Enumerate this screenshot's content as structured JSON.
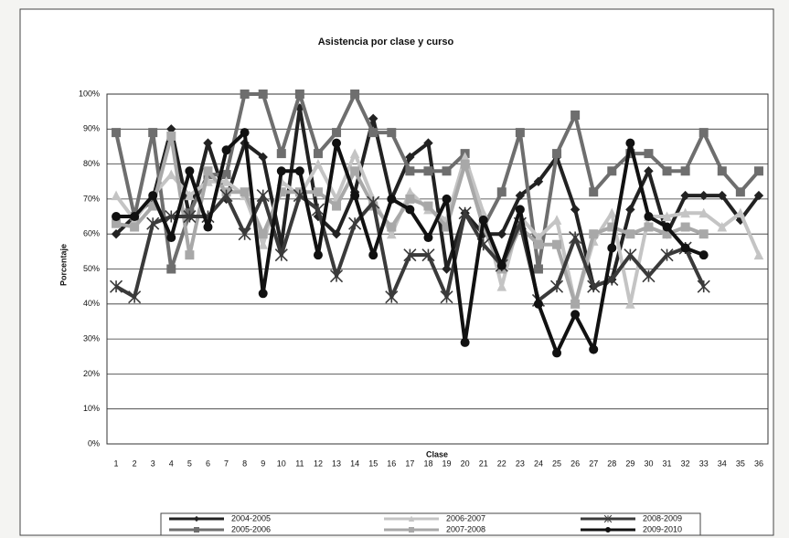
{
  "chart_data": {
    "type": "line",
    "title": "Asistencia por clase y curso",
    "x_label": "Clase",
    "y_label": "Porcentaje",
    "categories": [
      "1",
      "2",
      "3",
      "4",
      "5",
      "6",
      "7",
      "8",
      "9",
      "10",
      "11",
      "12",
      "13",
      "14",
      "15",
      "16",
      "17",
      "18",
      "19",
      "20",
      "21",
      "22",
      "23",
      "24",
      "25",
      "26",
      "27",
      "28",
      "29",
      "30",
      "31",
      "32",
      "33",
      "34",
      "35",
      "36"
    ],
    "ylim": [
      0,
      100
    ],
    "yticks": [
      {
        "value": 0,
        "label": "0%"
      },
      {
        "value": 10,
        "label": "10%"
      },
      {
        "value": 20,
        "label": "20%"
      },
      {
        "value": 30,
        "label": "30%"
      },
      {
        "value": 40,
        "label": "40%"
      },
      {
        "value": 50,
        "label": "50%"
      },
      {
        "value": 60,
        "label": "60%"
      },
      {
        "value": 70,
        "label": "70%"
      },
      {
        "value": 80,
        "label": "80%"
      },
      {
        "value": 90,
        "label": "90%"
      },
      {
        "value": 100,
        "label": "100%"
      }
    ],
    "grid": true,
    "legend": "bottom",
    "series": [
      {
        "name": "2004-2005",
        "color": "#222222",
        "marker": "diamond",
        "values": [
          60,
          65,
          70,
          90,
          65,
          86,
          70,
          86,
          82,
          57,
          96,
          65,
          60,
          72,
          93,
          70,
          82,
          86,
          50,
          66,
          60,
          60,
          71,
          75,
          82,
          67,
          45,
          47,
          67,
          78,
          60,
          71,
          71,
          71,
          64,
          71
        ]
      },
      {
        "name": "2005-2006",
        "color": "#6e6e6e",
        "marker": "square",
        "values": [
          89,
          65,
          89,
          50,
          66,
          77,
          77,
          100,
          100,
          83,
          100,
          83,
          89,
          100,
          89,
          89,
          78,
          78,
          78,
          83,
          62,
          72,
          89,
          50,
          83,
          94,
          72,
          78,
          83,
          83,
          78,
          78,
          89,
          78,
          72,
          78
        ]
      },
      {
        "name": "2006-2007",
        "color": "#c4c4c4",
        "marker": "triangle",
        "values": [
          71,
          64,
          71,
          77,
          71,
          75,
          75,
          71,
          57,
          75,
          71,
          80,
          70,
          83,
          70,
          60,
          72,
          67,
          64,
          82,
          66,
          45,
          65,
          59,
          64,
          40,
          58,
          66,
          40,
          65,
          65,
          66,
          66,
          62,
          66,
          54
        ]
      },
      {
        "name": "2007-2008",
        "color": "#a8a8a8",
        "marker": "square",
        "values": [
          63,
          62,
          68,
          88,
          54,
          78,
          72,
          72,
          60,
          72,
          72,
          72,
          68,
          78,
          68,
          62,
          70,
          68,
          62,
          80,
          62,
          50,
          62,
          57,
          57,
          40,
          60,
          62,
          60,
          62,
          60,
          62,
          60,
          null,
          null,
          null
        ]
      },
      {
        "name": "2008-2009",
        "color": "#3a3a3a",
        "marker": "star",
        "values": [
          45,
          42,
          63,
          65,
          65,
          65,
          71,
          60,
          71,
          54,
          71,
          67,
          48,
          63,
          69,
          42,
          54,
          54,
          42,
          66,
          57,
          51,
          63,
          41,
          45,
          59,
          45,
          47,
          54,
          48,
          54,
          56,
          45,
          null,
          null,
          null
        ]
      },
      {
        "name": "2009-2010",
        "color": "#111111",
        "marker": "circle",
        "values": [
          65,
          65,
          71,
          59,
          78,
          62,
          84,
          89,
          43,
          78,
          78,
          54,
          86,
          71,
          54,
          70,
          67,
          59,
          70,
          29,
          64,
          51,
          67,
          40,
          26,
          37,
          27,
          56,
          86,
          65,
          62,
          56,
          54,
          null,
          null,
          null
        ]
      }
    ]
  }
}
